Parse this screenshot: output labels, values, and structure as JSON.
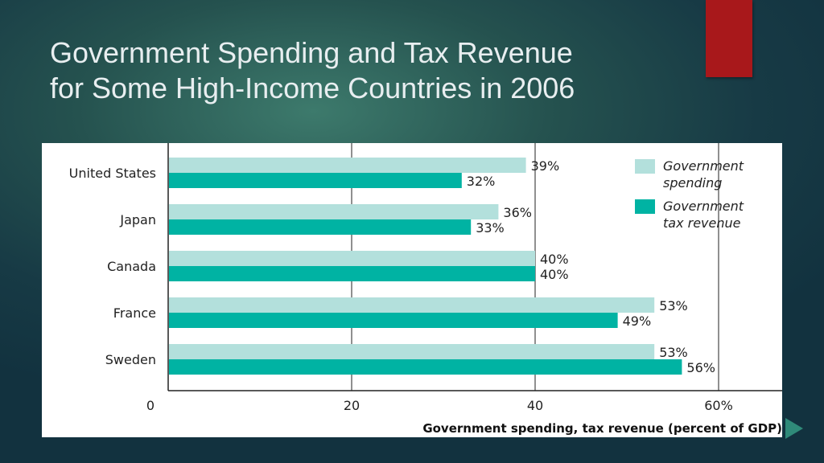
{
  "slide": {
    "title_line1": "Government Spending and Tax Revenue",
    "title_line2": "for Some High-Income Countries in 2006"
  },
  "colors": {
    "spending": "#b3e0dc",
    "tax_revenue": "#00b3a3",
    "accent": "#a8181b"
  },
  "chart_data": {
    "type": "bar",
    "orientation": "horizontal",
    "categories": [
      "United States",
      "Japan",
      "Canada",
      "France",
      "Sweden"
    ],
    "series": [
      {
        "name": "Government spending",
        "legend_lines": [
          "Government",
          "spending"
        ],
        "values": [
          39,
          36,
          40,
          53,
          53
        ],
        "labels": [
          "39%",
          "36%",
          "40%",
          "53%",
          "53%"
        ]
      },
      {
        "name": "Government tax revenue",
        "legend_lines": [
          "Government",
          "tax revenue"
        ],
        "values": [
          32,
          33,
          40,
          49,
          56
        ],
        "labels": [
          "32%",
          "33%",
          "40%",
          "49%",
          "56%"
        ]
      }
    ],
    "xlim": [
      0,
      60
    ],
    "ticks": [
      0,
      20,
      40,
      60
    ],
    "tick_labels": [
      "0",
      "20",
      "40",
      "60%"
    ],
    "xlabel": "Government spending, tax revenue (percent of GDP)",
    "ylabel": "",
    "grid": "vertical",
    "legend_position": "top-right"
  }
}
